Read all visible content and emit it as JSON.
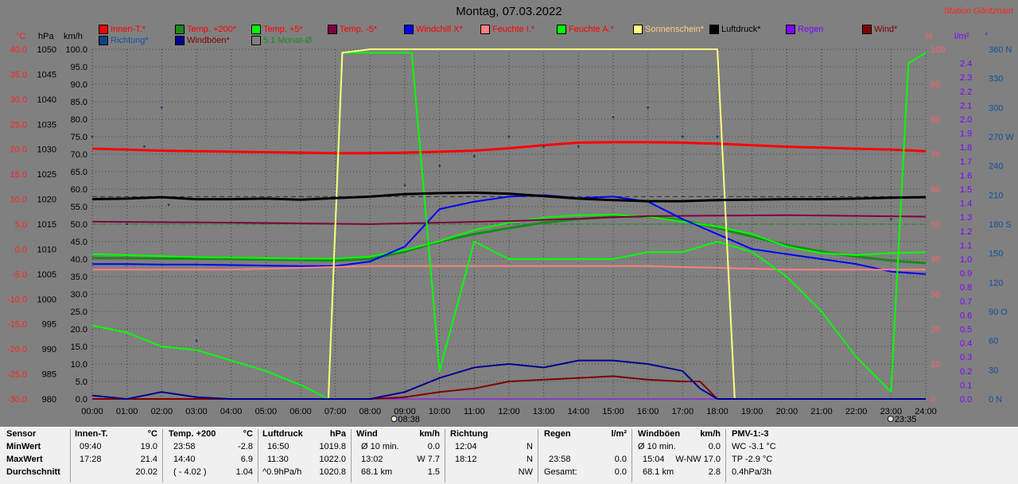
{
  "title": "Montag, 07.03.2022",
  "station": "Station Göritzhain",
  "units": {
    "c": "°C",
    "hpa": "hPa",
    "kmh": "km/h",
    "pct": "%",
    "lm2": "l/m²",
    "deg": "°"
  },
  "legend": [
    {
      "label": "Innen-T.*",
      "color": "#ff0000",
      "text_color": "#ff0000"
    },
    {
      "label": "Temp. +200*",
      "color": "#1a8a1a",
      "text_color": "#ff0000"
    },
    {
      "label": "Temp. +5*",
      "color": "#00ff00",
      "text_color": "#ff0000"
    },
    {
      "label": "Temp. -5*",
      "color": "#800040",
      "text_color": "#ff0000"
    },
    {
      "label": "Windchill X*",
      "color": "#0000ff",
      "text_color": "#ff0000"
    },
    {
      "label": "Feuchte I.*",
      "color": "#ff8080",
      "text_color": "#ff0000"
    },
    {
      "label": "Feuchte A.*",
      "color": "#00ff00",
      "text_color": "#ff0000"
    },
    {
      "label": "Sonnenschein*",
      "color": "#ffff80",
      "text_color": "#ffcc88"
    },
    {
      "label": "Luftdruck*",
      "color": "#000000",
      "text_color": "#000000"
    },
    {
      "label": "Regen",
      "color": "#8000ff",
      "text_color": "#8000ff"
    },
    {
      "label": "Wind*",
      "color": "#800000",
      "text_color": "#800000"
    },
    {
      "label": "Richtung*",
      "color": "#104080",
      "text_color": "#1050a0"
    },
    {
      "label": "Windböen*",
      "color": "#000090",
      "text_color": "#800000"
    },
    {
      "label": "5.1 Monat-Ø",
      "color": "#808080",
      "text_color": "#1a8a1a"
    }
  ],
  "chart_data": {
    "type": "line",
    "x_ticks": [
      "00:00",
      "01:00",
      "02:00",
      "03:00",
      "04:00",
      "05:00",
      "06:00",
      "07:00",
      "08:00",
      "09:00",
      "10:00",
      "11:00",
      "12:00",
      "13:00",
      "14:00",
      "15:00",
      "16:00",
      "17:00",
      "18:00",
      "19:00",
      "20:00",
      "21:00",
      "22:00",
      "23:00",
      "24:00"
    ],
    "temp_axis": {
      "unit": "°C",
      "ticks": [
        "40.0",
        "35.0",
        "30.0",
        "25.0",
        "20.0",
        "15.0",
        "10.0",
        "5.0",
        "0.0",
        "-5.0",
        "-10.0",
        "-15.0",
        "-20.0",
        "-25.0",
        "-30.0"
      ],
      "range": [
        -30,
        40
      ]
    },
    "pressure_axis": {
      "unit": "hPa",
      "ticks": [
        "1050",
        "1045",
        "1040",
        "1035",
        "1030",
        "1025",
        "1020",
        "1015",
        "1010",
        "1005",
        "1000",
        "995",
        "990",
        "985",
        "980"
      ],
      "range": [
        980,
        1050
      ]
    },
    "wind_axis": {
      "unit": "km/h",
      "ticks": [
        "100.0",
        "95.0",
        "90.0",
        "85.0",
        "80.0",
        "75.0",
        "70.0",
        "65.0",
        "60.0",
        "55.0",
        "50.0",
        "45.0",
        "40.0",
        "35.0",
        "30.0",
        "25.0",
        "20.0",
        "15.0",
        "10.0",
        "5.0",
        "0.0"
      ],
      "range": [
        0,
        100
      ]
    },
    "humidity_axis": {
      "unit": "%",
      "ticks": [
        "100",
        "90",
        "80",
        "70",
        "60",
        "50",
        "40",
        "30",
        "20",
        "10",
        "0"
      ],
      "range": [
        0,
        100
      ]
    },
    "rain_axis": {
      "unit": "l/m²",
      "ticks": [
        "2.4",
        "2.3",
        "2.2",
        "2.1",
        "2.0",
        "1.9",
        "1.8",
        "1.7",
        "1.6",
        "1.5",
        "1.4",
        "1.3",
        "1.2",
        "1.1",
        "1.0",
        "0.9",
        "0.8",
        "0.7",
        "0.6",
        "0.5",
        "0.4",
        "0.3",
        "0.2",
        "0.1",
        "0.0"
      ],
      "range": [
        0,
        2.5
      ]
    },
    "direction_axis": {
      "unit": "°",
      "ticks": [
        "360 N",
        "330",
        "300",
        "270 W",
        "240",
        "210",
        "180 S",
        "150",
        "120",
        "90 O",
        "60",
        "30",
        "0 N"
      ],
      "range": [
        0,
        360
      ]
    },
    "sunrise": "08:38",
    "sunset": "23:35",
    "series": [
      {
        "name": "Innen-T.*",
        "axis": "temp",
        "color": "#ff0000",
        "x": [
          0,
          1,
          2,
          3,
          4,
          5,
          6,
          7,
          8,
          9,
          10,
          11,
          12,
          13,
          14,
          15,
          16,
          17,
          18,
          19,
          20,
          21,
          22,
          23,
          24
        ],
        "values": [
          20.1,
          19.9,
          19.7,
          19.6,
          19.5,
          19.4,
          19.3,
          19.2,
          19.2,
          19.3,
          19.5,
          19.7,
          20.2,
          20.8,
          21.3,
          21.4,
          21.4,
          21.3,
          21.1,
          20.8,
          20.5,
          20.3,
          20.1,
          19.9,
          19.6
        ]
      },
      {
        "name": "Temp. +200*",
        "axis": "temp",
        "color": "#1a8a1a",
        "x": [
          0,
          1,
          2,
          3,
          4,
          5,
          6,
          7,
          8,
          9,
          10,
          11,
          12,
          13,
          14,
          15,
          16,
          17,
          18,
          19,
          20,
          21,
          22,
          23,
          24
        ],
        "values": [
          -1.8,
          -1.8,
          -1.9,
          -1.9,
          -2.0,
          -2.1,
          -2.2,
          -2.3,
          -2.0,
          -0.5,
          1.5,
          3.0,
          4.2,
          5.3,
          6.0,
          6.5,
          6.5,
          5.8,
          4.2,
          2.5,
          0.8,
          -0.5,
          -1.5,
          -2.3,
          -2.8
        ]
      },
      {
        "name": "Temp. +5*",
        "axis": "temp",
        "color": "#00ff00",
        "x": [
          0,
          1,
          2,
          3,
          4,
          5,
          6,
          7,
          8,
          9,
          10,
          11,
          12,
          13,
          14,
          15,
          16,
          17,
          18,
          19,
          20,
          21,
          22,
          23,
          24
        ],
        "values": [
          -1.0,
          -1.2,
          -1.4,
          -1.6,
          -1.7,
          -1.8,
          -1.9,
          -1.9,
          -1.5,
          -0.2,
          1.6,
          3.8,
          5.3,
          6.3,
          6.8,
          6.9,
          6.5,
          5.5,
          4.5,
          3.0,
          0.5,
          -0.8,
          -1.2,
          -0.8,
          -0.6
        ]
      },
      {
        "name": "Temp. -5*",
        "axis": "temp",
        "color": "#800040",
        "x": [
          0,
          4,
          8,
          12,
          16,
          20,
          24
        ],
        "values": [
          5.5,
          5.3,
          5.0,
          5.6,
          6.6,
          6.8,
          6.5
        ]
      },
      {
        "name": "Windchill X*",
        "axis": "temp",
        "color": "#0000ff",
        "x": [
          0,
          1,
          2,
          3,
          4,
          5,
          6,
          7,
          8,
          9,
          10,
          11,
          12,
          13,
          14,
          15,
          16,
          17,
          18,
          19,
          20,
          21,
          22,
          23,
          24
        ],
        "values": [
          -3.0,
          -3.0,
          -3.1,
          -3.1,
          -3.2,
          -3.3,
          -3.4,
          -3.4,
          -2.5,
          0.5,
          8.0,
          9.5,
          10.5,
          10.8,
          10.2,
          10.5,
          9.5,
          6.0,
          3.0,
          0.0,
          -1.0,
          -2.0,
          -3.0,
          -4.5,
          -5.0
        ]
      },
      {
        "name": "Feuchte I.*",
        "axis": "humidity",
        "color": "#ff8080",
        "x": [
          0,
          4,
          8,
          12,
          16,
          20,
          22,
          23,
          24
        ],
        "values": [
          37,
          37,
          38,
          38,
          38,
          37,
          37,
          37,
          37
        ]
      },
      {
        "name": "Feuchte A.*",
        "axis": "humidity",
        "color": "#00ff00",
        "x": [
          0,
          1,
          2,
          3,
          4,
          5,
          6,
          6.8,
          7.2,
          8,
          8.8,
          9.2,
          10,
          11,
          12,
          13,
          14,
          15,
          16,
          17,
          18,
          19,
          20,
          21,
          22,
          23,
          23.5,
          24
        ],
        "values": [
          21,
          19,
          15,
          14,
          11,
          8,
          4,
          0,
          99,
          99,
          99,
          99,
          8,
          45,
          40,
          40,
          40,
          40,
          42,
          42,
          45,
          42,
          35,
          25,
          12,
          2,
          96,
          99
        ]
      },
      {
        "name": "Sonnenschein*",
        "axis": "humidity",
        "color": "#ffff80",
        "x": [
          6.8,
          7.2,
          8.0,
          18.0,
          18.5,
          19.0
        ],
        "values": [
          0,
          99,
          100,
          100,
          0,
          0
        ]
      },
      {
        "name": "Luftdruck*",
        "axis": "pressure",
        "color": "#000000",
        "x": [
          0,
          1,
          2,
          3,
          4,
          5,
          6,
          7,
          8,
          9,
          10,
          11,
          12,
          13,
          14,
          15,
          16,
          17,
          18,
          19,
          20,
          21,
          22,
          23,
          24
        ],
        "values": [
          1020.0,
          1020.1,
          1020.4,
          1020.0,
          1020.0,
          1020.1,
          1019.9,
          1020.2,
          1020.5,
          1021.0,
          1021.2,
          1021.3,
          1021.1,
          1020.6,
          1020.1,
          1019.8,
          1019.6,
          1019.6,
          1019.8,
          1019.9,
          1020.0,
          1020.0,
          1020.1,
          1020.3,
          1020.4
        ]
      },
      {
        "name": "Regen",
        "axis": "rain",
        "color": "#8000ff",
        "x": [
          0,
          24
        ],
        "values": [
          0,
          0
        ]
      },
      {
        "name": "Wind*",
        "axis": "wind",
        "color": "#800000",
        "x": [
          0,
          8,
          9,
          10,
          11,
          12,
          13,
          14,
          15,
          16,
          17,
          17.5,
          18,
          24
        ],
        "values": [
          0,
          0,
          0.5,
          2,
          3,
          5,
          5.5,
          6,
          6.5,
          5.5,
          5,
          5,
          0,
          0
        ]
      },
      {
        "name": "Windböen*",
        "axis": "wind",
        "color": "#000090",
        "x": [
          0,
          1,
          2,
          3,
          4,
          5,
          6,
          7,
          8,
          9,
          10,
          11,
          12,
          13,
          14,
          15,
          16,
          17,
          17.5,
          18,
          24
        ],
        "values": [
          1,
          0,
          2,
          0.5,
          0,
          0,
          0,
          0,
          0,
          2,
          6,
          9,
          10,
          9,
          11,
          11,
          10,
          8,
          3,
          0,
          0
        ]
      },
      {
        "name": "Richtung*",
        "axis": "direction",
        "color": "#104080",
        "x": [
          0,
          1,
          1.5,
          2,
          2.2,
          3,
          5,
          6,
          8,
          9,
          10,
          11,
          12,
          13,
          14,
          15,
          16,
          17,
          18,
          23
        ],
        "values": [
          270,
          180,
          260,
          300,
          200,
          60,
          0,
          0,
          0,
          220,
          240,
          250,
          270,
          260,
          260,
          290,
          300,
          270,
          270,
          185
        ]
      }
    ],
    "reference_lines": [
      {
        "name": "5.1 Monat-Ø",
        "axis": "temp",
        "value": 5.0,
        "color": "#1a8a1a",
        "style": "dashed"
      },
      {
        "name": "Luftdruck*",
        "axis": "pressure",
        "value": 1020.5,
        "color": "#303030",
        "style": "dashed"
      }
    ]
  },
  "stats": {
    "sensor": {
      "header": "Sensor",
      "rows": [
        "MinWert",
        "MaxWert",
        "Durchschnitt"
      ]
    },
    "innen": {
      "header": "Innen-T.",
      "unit": "°C",
      "rows": [
        [
          "09:40",
          "19.0"
        ],
        [
          "17:28",
          "21.4"
        ],
        [
          "",
          "20.02"
        ]
      ]
    },
    "temp200": {
      "header": "Temp. +200",
      "unit": "°C",
      "rows": [
        [
          "23:58",
          "-2.8"
        ],
        [
          "14:40",
          "6.9"
        ],
        [
          "( - 4.02 )",
          "1.04"
        ]
      ]
    },
    "luftdruck": {
      "header": "Luftdruck",
      "unit": "hPa",
      "rows": [
        [
          "16:50",
          "1019.8"
        ],
        [
          "11:30",
          "1022.0"
        ],
        [
          "^0.9hPa/h",
          "1020.8"
        ]
      ]
    },
    "wind": {
      "header": "Wind",
      "unit": "km/h",
      "rows": [
        [
          "Ø 10 min.",
          "0.0"
        ],
        [
          "13:02",
          "W 7.7"
        ],
        [
          "68.1 km",
          "1.5"
        ]
      ]
    },
    "richtung": {
      "header": "Richtung",
      "rows": [
        [
          "12:04",
          "N"
        ],
        [
          "18:12",
          "N"
        ],
        [
          "",
          "NW"
        ]
      ]
    },
    "regen": {
      "header": "Regen",
      "unit": "l/m²",
      "rows": [
        [
          "",
          ""
        ],
        [
          "23:58",
          "0.0"
        ],
        [
          "Gesamt:",
          "0.0"
        ]
      ]
    },
    "windboeen": {
      "header": "Windböen",
      "unit": "km/h",
      "rows": [
        [
          "Ø 10 min.",
          "0.0"
        ],
        [
          "15:04",
          "W-NW 17.0"
        ],
        [
          "68.1 km",
          "2.8"
        ]
      ]
    },
    "pmv": {
      "header": "PMV-1:-3",
      "rows": [
        "WC -3.1 °C",
        "TP -2.9 °C",
        "0.4hPa/3h"
      ]
    }
  }
}
